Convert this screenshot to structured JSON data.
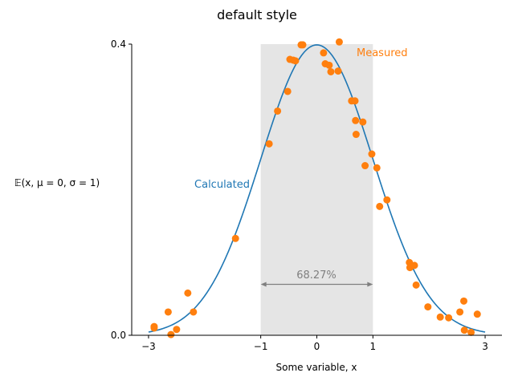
{
  "chart_data": {
    "type": "line",
    "title": "default style",
    "xlabel": "Some variable, x",
    "ylabel": "𝔼(x, μ = 0, σ = 1)",
    "xlim": [
      -3.3,
      3.3
    ],
    "ylim": [
      0,
      0.4
    ],
    "xticks": [
      -3,
      -1,
      0,
      1,
      3
    ],
    "xtick_labels": [
      "−3",
      "−1",
      "0",
      "1",
      "3"
    ],
    "yticks": [
      0,
      0.4
    ],
    "ytick_labels": [
      "0.0",
      "0.4"
    ],
    "grid": false,
    "series": [
      {
        "name": "Calculated",
        "kind": "line",
        "color": "#1f77b4",
        "function": "normal_pdf",
        "mu": 0,
        "sigma": 1,
        "x_range": [
          -3,
          3
        ]
      },
      {
        "name": "Measured",
        "kind": "scatter",
        "color": "#ff7f0e",
        "x": [
          -2.9,
          -2.9,
          -2.65,
          -2.6,
          -2.5,
          -2.3,
          -2.2,
          -1.45,
          -0.85,
          -0.7,
          -0.52,
          -0.48,
          -0.42,
          -0.38,
          -0.28,
          -0.25,
          0.12,
          0.15,
          0.22,
          0.25,
          0.38,
          0.4,
          0.62,
          0.68,
          0.69,
          0.7,
          0.82,
          0.86,
          0.98,
          1.07,
          1.12,
          1.25,
          1.65,
          1.66,
          1.74,
          1.77,
          1.98,
          2.2,
          2.35,
          2.55,
          2.62,
          2.63,
          2.75,
          2.86
        ],
        "y": [
          0.01,
          0.012,
          0.032,
          0.001,
          0.008,
          0.058,
          0.032,
          0.133,
          0.263,
          0.308,
          0.335,
          0.379,
          0.378,
          0.377,
          0.399,
          0.399,
          0.388,
          0.373,
          0.371,
          0.362,
          0.363,
          0.403,
          0.322,
          0.322,
          0.295,
          0.276,
          0.293,
          0.233,
          0.249,
          0.23,
          0.177,
          0.186,
          0.1,
          0.093,
          0.096,
          0.069,
          0.039,
          0.025,
          0.024,
          0.032,
          0.047,
          0.007,
          0.004,
          0.029
        ]
      }
    ],
    "shaded_region": {
      "x_from": -1,
      "x_to": 1,
      "color": "#e5e5e5"
    },
    "annotations": {
      "calculated_label": "Calculated",
      "measured_label": "Measured",
      "interval_label": "68.27%",
      "interval_arrow": {
        "x_from": -1,
        "x_to": 1,
        "y": 0.07
      }
    }
  }
}
